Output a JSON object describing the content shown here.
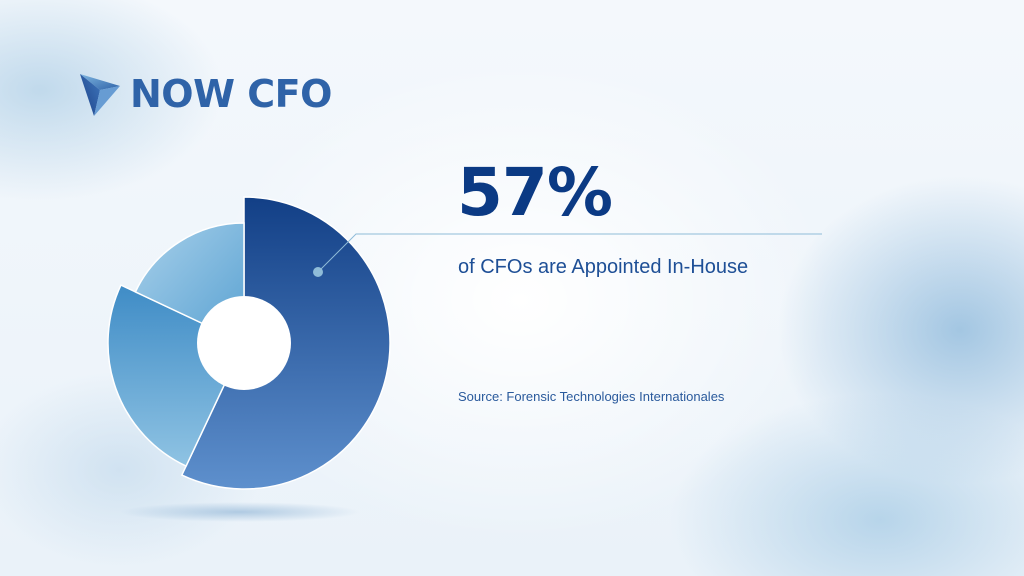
{
  "brand": {
    "name": "NOW CFO",
    "logo_icon": "now-cfo-arrow-mark"
  },
  "headline": {
    "value": "57%",
    "caption": "of CFOs are Appointed In-House"
  },
  "source": "Source: Forensic Technologies Internationales",
  "colors": {
    "primary_dark": "#0b3a84",
    "primary": "#2f63a8",
    "segment_main_top": "#164a8f",
    "segment_main_bottom": "#5a8ccb",
    "segment_mid": "#4b97cc",
    "segment_light": "#8cc0e2",
    "leader_line": "#8fbcd8"
  },
  "chart_data": {
    "type": "pie",
    "title": "",
    "categories": [
      "Appointed In-House",
      "",
      ""
    ],
    "values": [
      57,
      25,
      18
    ],
    "style": "exploded donut",
    "highlighted_index": 0
  }
}
